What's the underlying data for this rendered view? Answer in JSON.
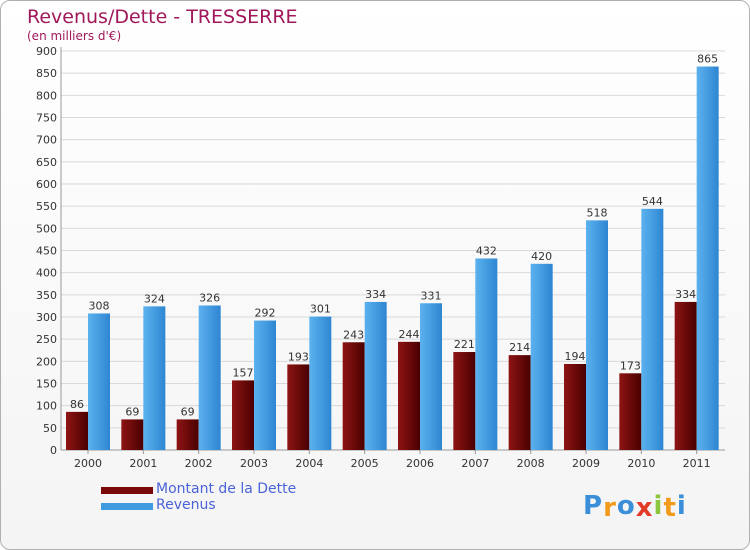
{
  "chart_data": {
    "type": "bar",
    "title": "Revenus/Dette - TRESSERRE",
    "subtitle": "(en milliers d'€)",
    "categories": [
      "2000",
      "2001",
      "2002",
      "2003",
      "2004",
      "2005",
      "2006",
      "2007",
      "2008",
      "2009",
      "2010",
      "2011"
    ],
    "series": [
      {
        "name": "Montant de la Dette",
        "color": "#7a0a0a",
        "values": [
          86,
          69,
          69,
          157,
          193,
          243,
          244,
          221,
          214,
          194,
          173,
          334
        ]
      },
      {
        "name": "Revenus",
        "color": "#3f9be0",
        "values": [
          308,
          324,
          326,
          292,
          301,
          334,
          331,
          432,
          420,
          518,
          544,
          865
        ]
      }
    ],
    "ylim": [
      0,
      900
    ],
    "yticks": [
      0,
      50,
      100,
      150,
      200,
      250,
      300,
      350,
      400,
      450,
      500,
      550,
      600,
      650,
      700,
      750,
      800,
      850,
      900
    ],
    "grid": true,
    "legend_position": "bottom-left"
  },
  "logo": {
    "text": "Proxiti",
    "letters": [
      {
        "ch": "P",
        "color": "#3a8fd8"
      },
      {
        "ch": "r",
        "color": "#f29a1a"
      },
      {
        "ch": "o",
        "color": "#3a8fd8"
      },
      {
        "ch": "x",
        "color": "#e23b2a"
      },
      {
        "ch": "i",
        "color": "#8cc63f"
      },
      {
        "ch": "t",
        "color": "#f29a1a"
      },
      {
        "ch": "i",
        "color": "#3a8fd8"
      }
    ]
  },
  "colors": {
    "title": "#a0185a",
    "legend_text": "#4a63d8"
  }
}
